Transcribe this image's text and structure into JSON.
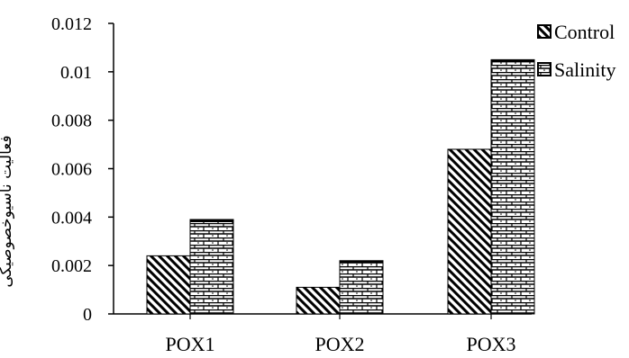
{
  "chart_data": {
    "type": "bar",
    "categories": [
      "POX1",
      "POX2",
      "POX3"
    ],
    "series": [
      {
        "name": "Control",
        "values": [
          0.0024,
          0.0011,
          0.0068
        ],
        "pattern": "diagonal-hatch"
      },
      {
        "name": "Salinity",
        "values": [
          0.0039,
          0.0022,
          0.0105
        ],
        "pattern": "brick-dots"
      }
    ],
    "ylabel": "فعالیت ناسیوخصوصیکی",
    "ylim": [
      0,
      0.012
    ],
    "yticks": [
      "0",
      "0.002",
      "0.004",
      "0.006",
      "0.008",
      "0.01",
      "0.012"
    ],
    "ytick_values": [
      0,
      0.002,
      0.004,
      0.006,
      0.008,
      0.01,
      0.012
    ],
    "legend_position": "top-right",
    "grid": false,
    "colors": {
      "ink": "#000000",
      "background": "#ffffff"
    }
  }
}
